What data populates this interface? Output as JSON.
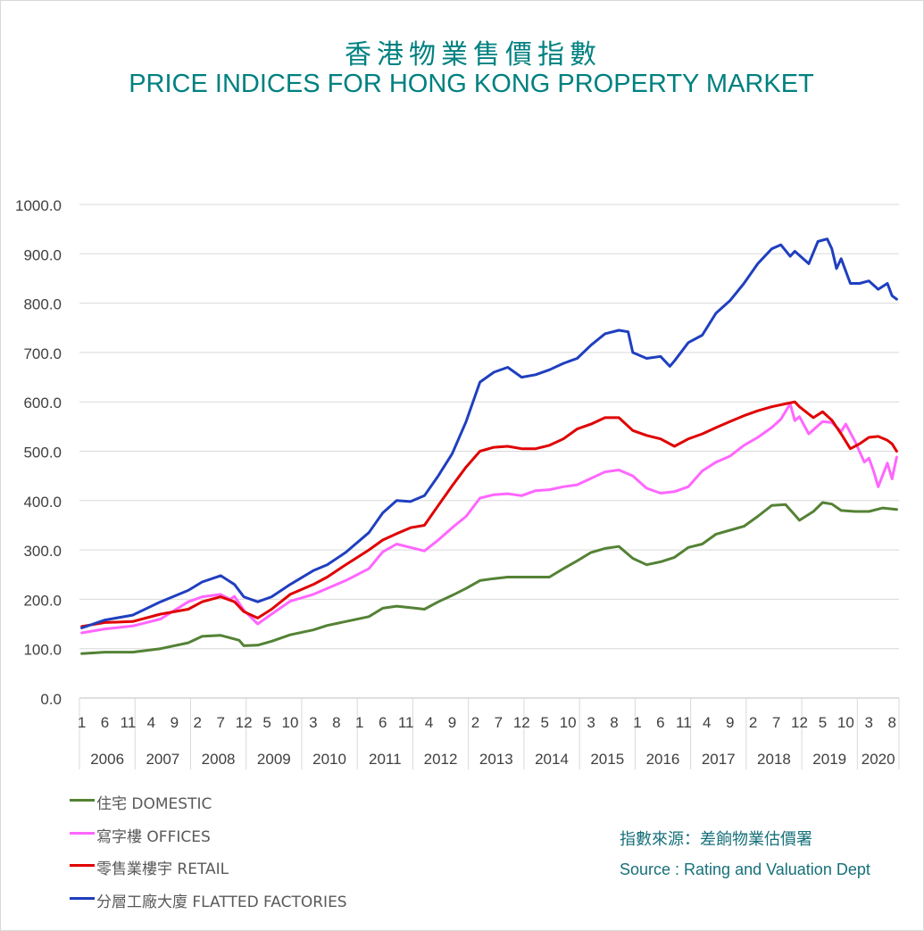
{
  "chart_data": {
    "type": "line",
    "title_zh": "香港物業售價指數",
    "title_en": "PRICE INDICES FOR HONG KONG PROPERTY MARKET",
    "xlabel": "",
    "ylabel": "",
    "ylim": [
      0,
      1000
    ],
    "y_ticks": [
      "0.0",
      "100.0",
      "200.0",
      "300.0",
      "400.0",
      "500.0",
      "600.0",
      "700.0",
      "800.0",
      "900.0",
      "1000.0"
    ],
    "x_start": "2006-01",
    "x_end": "2020-09",
    "x_month_ticks": [
      "1",
      "6",
      "11",
      "4",
      "9",
      "2",
      "7",
      "12",
      "5",
      "10",
      "3",
      "8",
      "1",
      "6",
      "11",
      "4",
      "9",
      "2",
      "7",
      "12",
      "5",
      "10",
      "3",
      "8",
      "1",
      "6",
      "11",
      "4",
      "9",
      "2",
      "7",
      "12",
      "5",
      "10",
      "3",
      "8"
    ],
    "x_year_labels": [
      "2006",
      "2007",
      "2008",
      "2009",
      "2010",
      "2011",
      "2012",
      "2013",
      "2014",
      "2015",
      "2016",
      "2017",
      "2018",
      "2019",
      "2020"
    ],
    "grid": "horizontal",
    "legend_position": "bottom-left",
    "series": [
      {
        "name": "住宅 DOMESTIC",
        "color": "#548235",
        "points": [
          [
            "2006-01",
            90
          ],
          [
            "2006-06",
            93
          ],
          [
            "2006-12",
            93
          ],
          [
            "2007-06",
            100
          ],
          [
            "2007-12",
            112
          ],
          [
            "2008-03",
            125
          ],
          [
            "2008-07",
            127
          ],
          [
            "2008-11",
            117
          ],
          [
            "2008-12",
            106
          ],
          [
            "2009-03",
            107
          ],
          [
            "2009-06",
            115
          ],
          [
            "2009-10",
            128
          ],
          [
            "2010-03",
            138
          ],
          [
            "2010-06",
            147
          ],
          [
            "2010-10",
            155
          ],
          [
            "2011-03",
            165
          ],
          [
            "2011-06",
            182
          ],
          [
            "2011-09",
            186
          ],
          [
            "2011-12",
            183
          ],
          [
            "2012-03",
            180
          ],
          [
            "2012-06",
            195
          ],
          [
            "2012-09",
            208
          ],
          [
            "2012-12",
            222
          ],
          [
            "2013-03",
            238
          ],
          [
            "2013-06",
            242
          ],
          [
            "2013-09",
            245
          ],
          [
            "2013-12",
            245
          ],
          [
            "2014-03",
            245
          ],
          [
            "2014-06",
            245
          ],
          [
            "2014-09",
            262
          ],
          [
            "2014-12",
            278
          ],
          [
            "2015-03",
            295
          ],
          [
            "2015-06",
            303
          ],
          [
            "2015-09",
            307
          ],
          [
            "2015-12",
            283
          ],
          [
            "2016-03",
            270
          ],
          [
            "2016-06",
            276
          ],
          [
            "2016-09",
            285
          ],
          [
            "2016-12",
            305
          ],
          [
            "2017-03",
            312
          ],
          [
            "2017-06",
            332
          ],
          [
            "2017-09",
            340
          ],
          [
            "2017-12",
            348
          ],
          [
            "2018-03",
            368
          ],
          [
            "2018-06",
            390
          ],
          [
            "2018-09",
            392
          ],
          [
            "2018-12",
            360
          ],
          [
            "2019-03",
            378
          ],
          [
            "2019-05",
            396
          ],
          [
            "2019-07",
            393
          ],
          [
            "2019-09",
            380
          ],
          [
            "2019-12",
            378
          ],
          [
            "2020-03",
            378
          ],
          [
            "2020-06",
            385
          ],
          [
            "2020-09",
            382
          ]
        ]
      },
      {
        "name": "寫字樓 OFFICES",
        "color": "#ff66ff",
        "points": [
          [
            "2006-01",
            132
          ],
          [
            "2006-06",
            140
          ],
          [
            "2006-12",
            146
          ],
          [
            "2007-06",
            160
          ],
          [
            "2007-12",
            195
          ],
          [
            "2008-03",
            205
          ],
          [
            "2008-07",
            210
          ],
          [
            "2008-09",
            200
          ],
          [
            "2008-10",
            206
          ],
          [
            "2008-12",
            178
          ],
          [
            "2009-03",
            150
          ],
          [
            "2009-06",
            170
          ],
          [
            "2009-10",
            196
          ],
          [
            "2010-03",
            210
          ],
          [
            "2010-06",
            222
          ],
          [
            "2010-10",
            238
          ],
          [
            "2011-03",
            262
          ],
          [
            "2011-06",
            296
          ],
          [
            "2011-09",
            312
          ],
          [
            "2011-12",
            305
          ],
          [
            "2012-03",
            298
          ],
          [
            "2012-06",
            320
          ],
          [
            "2012-09",
            345
          ],
          [
            "2012-12",
            368
          ],
          [
            "2013-03",
            405
          ],
          [
            "2013-06",
            412
          ],
          [
            "2013-09",
            414
          ],
          [
            "2013-12",
            410
          ],
          [
            "2014-03",
            420
          ],
          [
            "2014-06",
            422
          ],
          [
            "2014-09",
            428
          ],
          [
            "2014-12",
            432
          ],
          [
            "2015-03",
            445
          ],
          [
            "2015-06",
            458
          ],
          [
            "2015-09",
            462
          ],
          [
            "2015-12",
            450
          ],
          [
            "2016-03",
            425
          ],
          [
            "2016-06",
            415
          ],
          [
            "2016-09",
            418
          ],
          [
            "2016-12",
            428
          ],
          [
            "2017-03",
            460
          ],
          [
            "2017-06",
            478
          ],
          [
            "2017-09",
            490
          ],
          [
            "2017-12",
            512
          ],
          [
            "2018-03",
            528
          ],
          [
            "2018-06",
            548
          ],
          [
            "2018-08",
            565
          ],
          [
            "2018-10",
            596
          ],
          [
            "2018-11",
            562
          ],
          [
            "2018-12",
            570
          ],
          [
            "2019-02",
            535
          ],
          [
            "2019-05",
            560
          ],
          [
            "2019-07",
            558
          ],
          [
            "2019-09",
            540
          ],
          [
            "2019-10",
            555
          ],
          [
            "2019-12",
            520
          ],
          [
            "2020-02",
            478
          ],
          [
            "2020-03",
            486
          ],
          [
            "2020-04",
            460
          ],
          [
            "2020-05",
            428
          ],
          [
            "2020-07",
            476
          ],
          [
            "2020-08",
            444
          ],
          [
            "2020-09",
            488
          ]
        ]
      },
      {
        "name": "零售業樓宇 RETAIL",
        "color": "#e00000",
        "points": [
          [
            "2006-01",
            145
          ],
          [
            "2006-06",
            153
          ],
          [
            "2006-12",
            155
          ],
          [
            "2007-06",
            170
          ],
          [
            "2007-12",
            180
          ],
          [
            "2008-03",
            195
          ],
          [
            "2008-07",
            205
          ],
          [
            "2008-10",
            195
          ],
          [
            "2008-12",
            175
          ],
          [
            "2009-03",
            162
          ],
          [
            "2009-06",
            180
          ],
          [
            "2009-10",
            210
          ],
          [
            "2010-03",
            230
          ],
          [
            "2010-06",
            245
          ],
          [
            "2010-10",
            270
          ],
          [
            "2011-03",
            300
          ],
          [
            "2011-06",
            320
          ],
          [
            "2011-09",
            333
          ],
          [
            "2011-12",
            345
          ],
          [
            "2012-03",
            350
          ],
          [
            "2012-06",
            390
          ],
          [
            "2012-09",
            430
          ],
          [
            "2012-12",
            468
          ],
          [
            "2013-03",
            500
          ],
          [
            "2013-06",
            508
          ],
          [
            "2013-09",
            510
          ],
          [
            "2013-12",
            505
          ],
          [
            "2014-03",
            505
          ],
          [
            "2014-06",
            512
          ],
          [
            "2014-09",
            525
          ],
          [
            "2014-12",
            545
          ],
          [
            "2015-03",
            555
          ],
          [
            "2015-06",
            568
          ],
          [
            "2015-09",
            568
          ],
          [
            "2015-12",
            542
          ],
          [
            "2016-03",
            532
          ],
          [
            "2016-06",
            525
          ],
          [
            "2016-09",
            510
          ],
          [
            "2016-12",
            525
          ],
          [
            "2017-03",
            535
          ],
          [
            "2017-06",
            548
          ],
          [
            "2017-09",
            560
          ],
          [
            "2017-12",
            572
          ],
          [
            "2018-03",
            582
          ],
          [
            "2018-06",
            590
          ],
          [
            "2018-09",
            596
          ],
          [
            "2018-11",
            600
          ],
          [
            "2018-12",
            590
          ],
          [
            "2019-03",
            568
          ],
          [
            "2019-05",
            580
          ],
          [
            "2019-07",
            563
          ],
          [
            "2019-09",
            535
          ],
          [
            "2019-11",
            505
          ],
          [
            "2020-01",
            515
          ],
          [
            "2020-03",
            528
          ],
          [
            "2020-05",
            530
          ],
          [
            "2020-07",
            522
          ],
          [
            "2020-08",
            515
          ],
          [
            "2020-09",
            500
          ]
        ]
      },
      {
        "name": "分層工廠大廈 FLATTED FACTORIES",
        "color": "#1f3fbf",
        "points": [
          [
            "2006-01",
            142
          ],
          [
            "2006-06",
            158
          ],
          [
            "2006-12",
            168
          ],
          [
            "2007-06",
            195
          ],
          [
            "2007-12",
            218
          ],
          [
            "2008-03",
            235
          ],
          [
            "2008-07",
            248
          ],
          [
            "2008-10",
            230
          ],
          [
            "2008-12",
            205
          ],
          [
            "2009-03",
            195
          ],
          [
            "2009-06",
            205
          ],
          [
            "2009-10",
            230
          ],
          [
            "2010-03",
            258
          ],
          [
            "2010-06",
            270
          ],
          [
            "2010-10",
            295
          ],
          [
            "2011-03",
            335
          ],
          [
            "2011-06",
            375
          ],
          [
            "2011-09",
            400
          ],
          [
            "2011-12",
            398
          ],
          [
            "2012-03",
            410
          ],
          [
            "2012-06",
            450
          ],
          [
            "2012-09",
            495
          ],
          [
            "2012-12",
            560
          ],
          [
            "2013-03",
            640
          ],
          [
            "2013-06",
            660
          ],
          [
            "2013-09",
            670
          ],
          [
            "2013-12",
            650
          ],
          [
            "2014-03",
            655
          ],
          [
            "2014-06",
            665
          ],
          [
            "2014-09",
            678
          ],
          [
            "2014-12",
            688
          ],
          [
            "2015-03",
            715
          ],
          [
            "2015-06",
            738
          ],
          [
            "2015-09",
            745
          ],
          [
            "2015-11",
            742
          ],
          [
            "2015-12",
            700
          ],
          [
            "2016-03",
            688
          ],
          [
            "2016-06",
            692
          ],
          [
            "2016-08",
            672
          ],
          [
            "2016-09",
            683
          ],
          [
            "2016-12",
            720
          ],
          [
            "2017-03",
            735
          ],
          [
            "2017-06",
            780
          ],
          [
            "2017-09",
            805
          ],
          [
            "2017-12",
            840
          ],
          [
            "2018-03",
            880
          ],
          [
            "2018-06",
            910
          ],
          [
            "2018-08",
            918
          ],
          [
            "2018-10",
            895
          ],
          [
            "2018-11",
            905
          ],
          [
            "2019-02",
            880
          ],
          [
            "2019-04",
            925
          ],
          [
            "2019-06",
            930
          ],
          [
            "2019-07",
            910
          ],
          [
            "2019-08",
            870
          ],
          [
            "2019-09",
            890
          ],
          [
            "2019-11",
            840
          ],
          [
            "2020-01",
            840
          ],
          [
            "2020-03",
            845
          ],
          [
            "2020-05",
            828
          ],
          [
            "2020-07",
            840
          ],
          [
            "2020-08",
            815
          ],
          [
            "2020-09",
            808
          ]
        ]
      }
    ]
  },
  "source": {
    "zh": "指數來源：差餉物業估價署",
    "en": "Source : Rating and Valuation Dept"
  }
}
